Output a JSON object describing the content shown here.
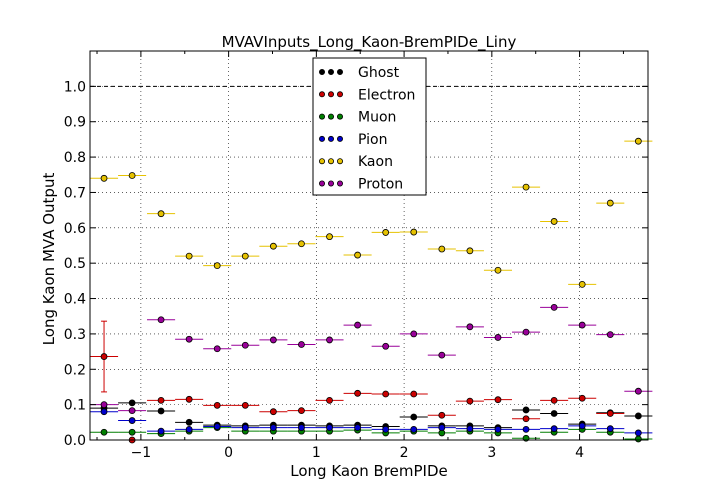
{
  "chart_data": {
    "type": "scatter",
    "title": "MVAVInputs_Long_Kaon-BremPIDe_Liny",
    "xlabel": "Long Kaon BremPIDe",
    "ylabel": "Long Kaon MVA Output",
    "xlim": [
      -1.58,
      4.78
    ],
    "ylim": [
      0.0,
      1.1
    ],
    "x_ticks": [
      -1,
      0,
      1,
      2,
      3,
      4
    ],
    "x_tick_labels": [
      "−1",
      "0",
      "1",
      "2",
      "3",
      "4"
    ],
    "y_ticks": [
      0.0,
      0.1,
      0.2,
      0.3,
      0.4,
      0.5,
      0.6,
      0.7,
      0.8,
      0.9,
      1.0
    ],
    "y_tick_labels": [
      "0.0",
      "0.1",
      "0.2",
      "0.3",
      "0.4",
      "0.5",
      "0.6",
      "0.7",
      "0.8",
      "0.9",
      "1.0"
    ],
    "reference_line": 1.0,
    "grid": true,
    "legend_position": "top-center",
    "bin_half_width": 0.16,
    "x": [
      -1.42,
      -1.1,
      -0.77,
      -0.45,
      -0.13,
      0.19,
      0.51,
      0.83,
      1.15,
      1.47,
      1.79,
      2.11,
      2.43,
      2.75,
      3.07,
      3.39,
      3.71,
      4.03,
      4.35,
      4.67
    ],
    "series": [
      {
        "name": "Ghost",
        "color": "#000000",
        "values": [
          0.09,
          0.105,
          0.082,
          0.05,
          0.042,
          0.04,
          0.042,
          0.042,
          0.04,
          0.042,
          0.038,
          0.065,
          0.04,
          0.04,
          0.035,
          0.085,
          0.075,
          0.045,
          0.077,
          0.068
        ]
      },
      {
        "name": "Electron",
        "color": "#cc0000",
        "values": [
          0.236,
          0.0,
          0.112,
          0.115,
          0.098,
          0.098,
          0.08,
          0.083,
          0.112,
          0.132,
          0.13,
          0.13,
          0.07,
          0.11,
          0.114,
          0.06,
          0.112,
          0.118,
          0.075,
          null
        ],
        "errors": [
          0.1,
          0.0,
          0.0,
          0.0,
          0.0,
          0.0,
          0.0,
          0.0,
          0.0,
          0.0,
          0.0,
          0.0,
          0.0,
          0.0,
          0.0,
          0.0,
          0.0,
          0.0,
          0.0,
          0.0
        ]
      },
      {
        "name": "Muon",
        "color": "#007f00",
        "values": [
          0.022,
          0.022,
          0.018,
          0.025,
          0.035,
          0.025,
          0.025,
          0.025,
          0.025,
          0.028,
          0.02,
          0.025,
          0.02,
          0.025,
          0.02,
          0.005,
          0.022,
          0.03,
          0.022,
          0.003
        ]
      },
      {
        "name": "Pion",
        "color": "#0000cc",
        "values": [
          0.08,
          0.055,
          0.025,
          0.03,
          0.038,
          0.035,
          0.035,
          0.035,
          0.035,
          0.035,
          0.03,
          0.03,
          0.035,
          0.032,
          0.03,
          0.03,
          0.032,
          0.04,
          0.032,
          0.02
        ]
      },
      {
        "name": "Kaon",
        "color": "#e6c200",
        "values": [
          0.74,
          0.748,
          0.64,
          0.52,
          0.493,
          0.52,
          0.548,
          0.555,
          0.575,
          0.523,
          0.587,
          0.588,
          0.54,
          0.535,
          0.48,
          0.715,
          0.618,
          0.44,
          0.67,
          0.845
        ]
      },
      {
        "name": "Proton",
        "color": "#990099",
        "values": [
          0.1,
          0.083,
          0.34,
          0.285,
          0.258,
          0.268,
          0.283,
          0.27,
          0.283,
          0.325,
          0.265,
          0.3,
          0.24,
          0.32,
          0.29,
          0.305,
          0.375,
          0.325,
          0.298,
          0.138
        ]
      }
    ]
  }
}
